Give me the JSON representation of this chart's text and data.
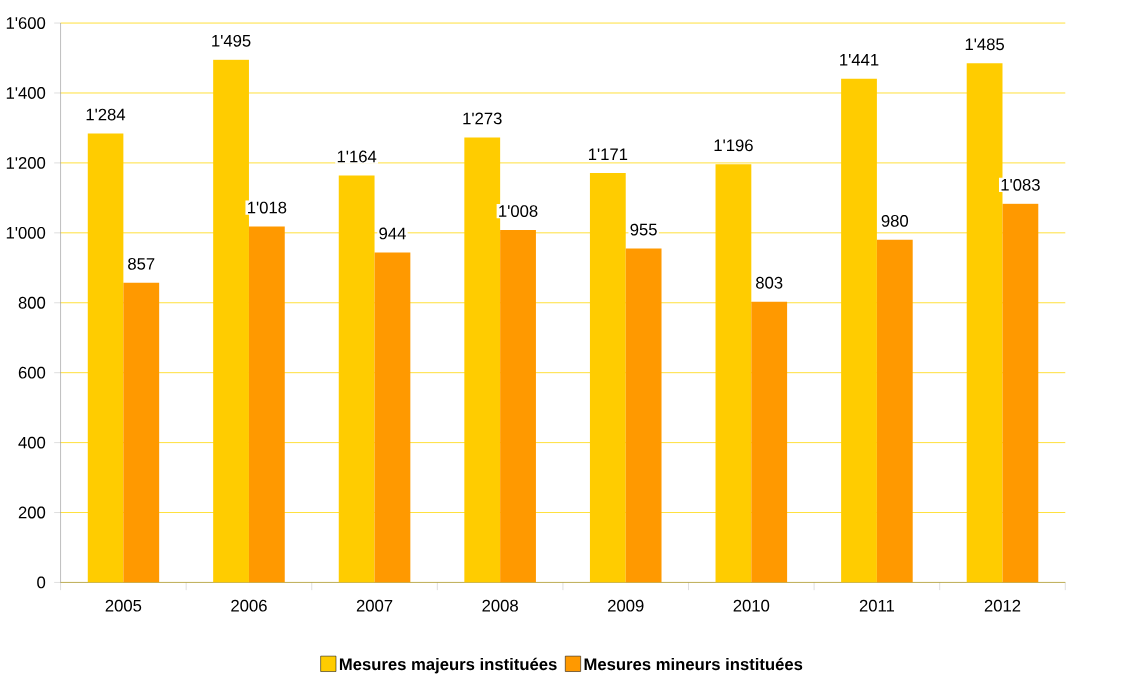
{
  "chart_data": {
    "type": "bar",
    "categories": [
      "2005",
      "2006",
      "2007",
      "2008",
      "2009",
      "2010",
      "2011",
      "2012"
    ],
    "series": [
      {
        "name": "Mesures majeurs instituées",
        "color": "#ffcc00",
        "values": [
          1284,
          1495,
          1164,
          1273,
          1171,
          1196,
          1441,
          1485
        ],
        "value_labels": [
          "1'284",
          "1'495",
          "1'164",
          "1'273",
          "1'171",
          "1'196",
          "1'441",
          "1'485"
        ]
      },
      {
        "name": "Mesures mineurs instituées",
        "color": "#ff9900",
        "values": [
          857,
          1018,
          944,
          1008,
          955,
          803,
          980,
          1083
        ],
        "value_labels": [
          "857",
          "1'018",
          "944",
          "1'008",
          "955",
          "803",
          "980",
          "1'083"
        ]
      }
    ],
    "ylim": [
      0,
      1600
    ],
    "yticks": [
      0,
      200,
      400,
      600,
      800,
      {
        "value": 1000,
        "label": "1'000"
      },
      {
        "value": 1200,
        "label": "1'200"
      },
      {
        "value": 1400,
        "label": "1'400"
      },
      {
        "value": 1600,
        "label": "1'600"
      }
    ],
    "grid": "y",
    "legend": "bottom"
  }
}
